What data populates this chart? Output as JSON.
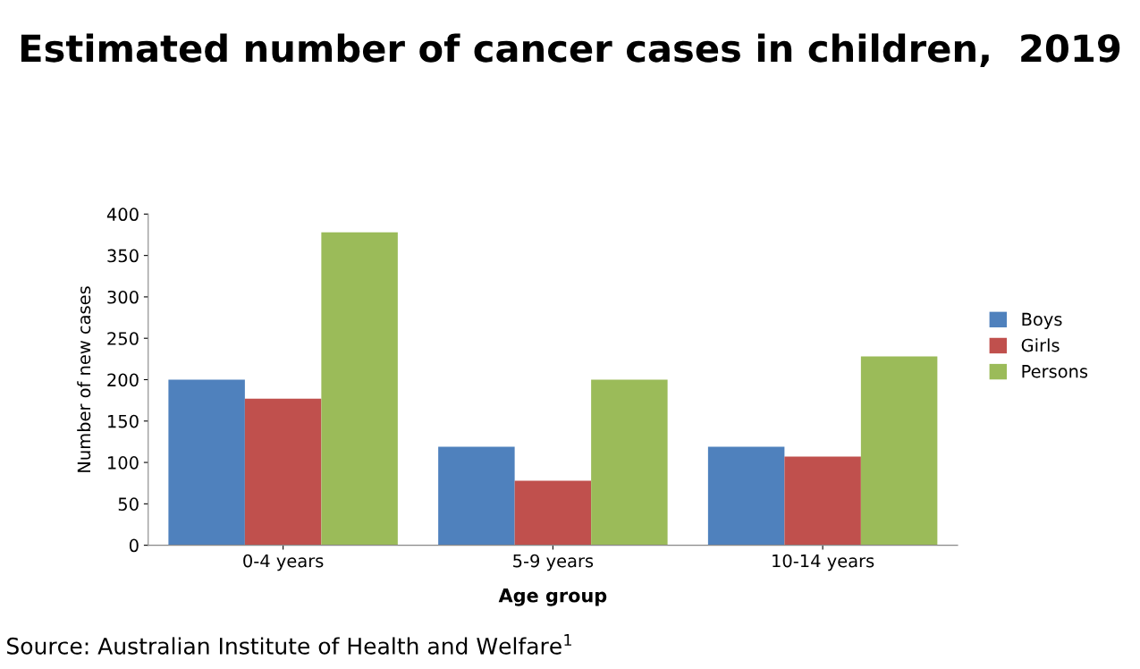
{
  "chart_data": {
    "type": "bar",
    "title": "Estimated number of cancer cases in children,  2019",
    "xlabel": "Age group",
    "ylabel": "Number of new cases",
    "categories": [
      "0-4 years",
      "5-9 years",
      "10-14 years"
    ],
    "series": [
      {
        "name": "Boys",
        "color": "#4f81bd",
        "values": [
          200,
          119,
          119
        ]
      },
      {
        "name": "Girls",
        "color": "#c0504d",
        "values": [
          177,
          78,
          107
        ]
      },
      {
        "name": "Persons",
        "color": "#9bbb59",
        "values": [
          378,
          200,
          228
        ]
      }
    ],
    "ylim": [
      0,
      400
    ],
    "yticks": [
      0,
      50,
      100,
      150,
      200,
      250,
      300,
      350,
      400
    ],
    "grid": false,
    "legend": "right",
    "annotations": [
      "Source: Australian Institute of Health and Welfare$^{1}$"
    ]
  }
}
